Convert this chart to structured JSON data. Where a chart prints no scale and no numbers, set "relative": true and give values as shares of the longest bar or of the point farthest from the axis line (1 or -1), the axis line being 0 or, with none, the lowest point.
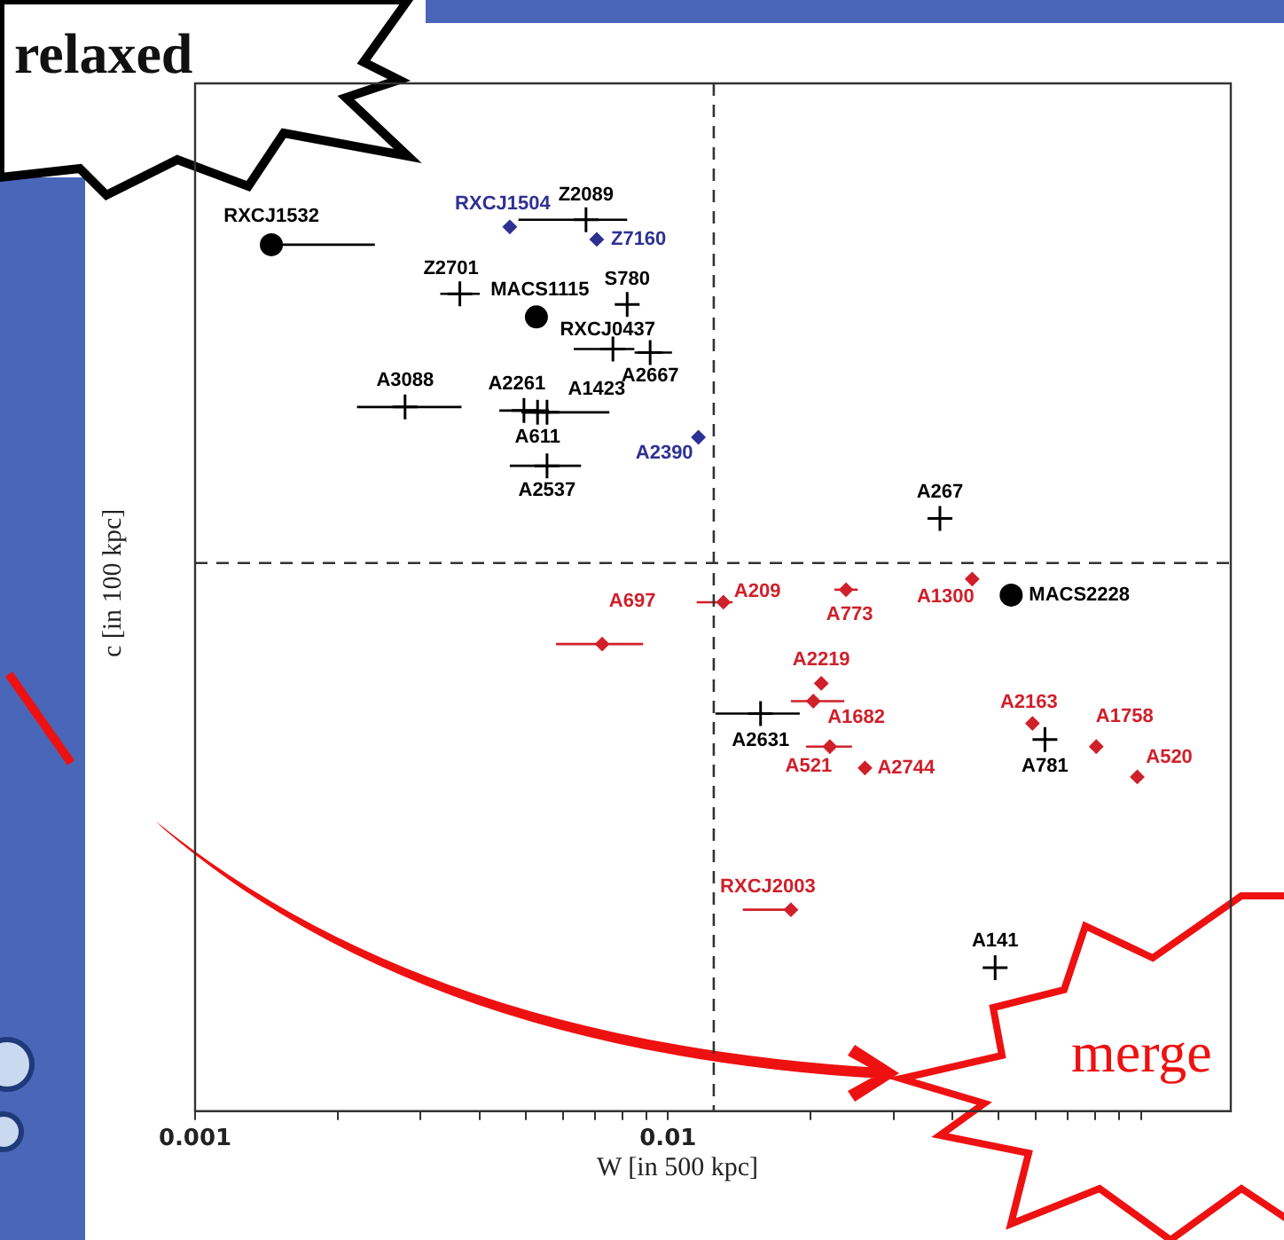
{
  "chart_data": {
    "type": "scatter",
    "xlabel": "W [in 500 kpc]",
    "ylabel": "c [in 100 kpc]",
    "relative": true,
    "log": "x",
    "grid": false,
    "legend": false,
    "xlim": [
      0.001,
      0.155
    ],
    "xticks": [
      0.001,
      {
        "value": 0.002,
        "label": null
      },
      {
        "value": 0.003,
        "label": null
      },
      {
        "value": 0.004,
        "label": null
      },
      {
        "value": 0.005,
        "label": null
      },
      {
        "value": 0.006,
        "label": null
      },
      {
        "value": 0.007,
        "label": null
      },
      {
        "value": 0.008,
        "label": null
      },
      {
        "value": 0.009,
        "label": null
      },
      0.01,
      {
        "value": 0.02,
        "label": null
      },
      {
        "value": 0.03,
        "label": null
      },
      {
        "value": 0.04,
        "label": null
      },
      {
        "value": 0.05,
        "label": null
      },
      {
        "value": 0.06,
        "label": null
      },
      {
        "value": 0.07,
        "label": null
      },
      {
        "value": 0.08,
        "label": null
      },
      {
        "value": 0.09,
        "label": null
      },
      {
        "value": 0.1,
        "label": null
      }
    ],
    "ref_lines": [
      {
        "axis": "x",
        "value": 0.0125,
        "line_style": "dashed",
        "color": "#333333"
      },
      {
        "axis": "y",
        "value": 0.615,
        "line_style": "dashed",
        "color": "#333333"
      }
    ],
    "series": [
      {
        "color": "#000000",
        "marker": "circle",
        "x": [
          0.00145,
          0.00527,
          0.0532
        ],
        "values": [
          0.972,
          0.891,
          0.579
        ],
        "xerrors": [
          [
            0.00145,
            0.0024
          ],
          null,
          null
        ]
      },
      {
        "color": "#000000",
        "marker": "cross",
        "x": [
          0.00671,
          0.00363,
          0.0082,
          0.00765,
          0.00917,
          0.00278,
          0.00496,
          0.0053,
          0.00555,
          0.00555,
          0.0376,
          0.0157,
          0.0627,
          0.0492
        ],
        "values": [
          1.0,
          0.917,
          0.905,
          0.855,
          0.851,
          0.79,
          0.786,
          0.784,
          0.784,
          0.724,
          0.665,
          0.446,
          0.417,
          0.161
        ],
        "xerrors": [
          [
            0.00483,
            0.0082
          ],
          [
            0.0033,
            0.004
          ],
          null,
          [
            0.00632,
            0.00849
          ],
          [
            0.0085,
            0.0102
          ],
          [
            0.0022,
            0.00366
          ],
          [
            0.0044,
            0.0056
          ],
          null,
          [
            0.0049,
            0.00752
          ],
          [
            0.00463,
            0.00655
          ],
          null,
          [
            0.0126,
            0.019
          ],
          null,
          null
        ]
      },
      {
        "color": "#2e3192",
        "marker": "diamond",
        "x": [
          0.00463,
          0.00707,
          0.0116
        ],
        "values": [
          0.992,
          0.978,
          0.756
        ]
      },
      {
        "color": "#d0202a",
        "marker": "diamond",
        "x": [
          0.00726,
          0.0131,
          0.0238,
          0.044,
          0.0211,
          0.0203,
          0.022,
          0.0261,
          0.059,
          0.0805,
          0.0983,
          0.0182
        ],
        "values": [
          0.524,
          0.571,
          0.585,
          0.597,
          0.48,
          0.46,
          0.409,
          0.385,
          0.435,
          0.409,
          0.375,
          0.226
        ],
        "xerrors": [
          [
            0.0058,
            0.00886
          ],
          [
            0.0115,
            0.0137
          ],
          [
            0.0225,
            0.0252
          ],
          null,
          null,
          [
            0.0182,
            0.0236
          ],
          [
            0.0196,
            0.0245
          ],
          null,
          null,
          null,
          null,
          [
            0.0144,
            0.0186
          ]
        ]
      }
    ],
    "annotations": [
      {
        "text": "RXCJ1532",
        "x": 0.00145,
        "y": 0.972
      },
      {
        "text": "MACS1115",
        "x": 0.00527,
        "y": 0.891
      },
      {
        "text": "MACS2228",
        "x": 0.0532,
        "y": 0.579
      },
      {
        "text": "Z2089",
        "x": 0.00671,
        "y": 1.0
      },
      {
        "text": "Z2701",
        "x": 0.00363,
        "y": 0.917
      },
      {
        "text": "S780",
        "x": 0.0082,
        "y": 0.905
      },
      {
        "text": "RXCJ0437",
        "x": 0.00765,
        "y": 0.855
      },
      {
        "text": "A2667",
        "x": 0.00917,
        "y": 0.851
      },
      {
        "text": "A3088",
        "x": 0.00278,
        "y": 0.79
      },
      {
        "text": "A2261",
        "x": 0.00496,
        "y": 0.786
      },
      {
        "text": "A611",
        "x": 0.0053,
        "y": 0.784
      },
      {
        "text": "A1423",
        "x": 0.00555,
        "y": 0.784
      },
      {
        "text": "A2537",
        "x": 0.00555,
        "y": 0.724
      },
      {
        "text": "A267",
        "x": 0.0376,
        "y": 0.665
      },
      {
        "text": "A2631",
        "x": 0.0157,
        "y": 0.446
      },
      {
        "text": "A781",
        "x": 0.0627,
        "y": 0.417
      },
      {
        "text": "A141",
        "x": 0.0492,
        "y": 0.161
      },
      {
        "text": "RXCJ1504",
        "x": 0.00463,
        "y": 0.992
      },
      {
        "text": "Z7160",
        "x": 0.00707,
        "y": 0.978
      },
      {
        "text": "A2390",
        "x": 0.0116,
        "y": 0.756
      },
      {
        "text": "A697",
        "x": 0.00726,
        "y": 0.524
      },
      {
        "text": "A209",
        "x": 0.0131,
        "y": 0.571
      },
      {
        "text": "A773",
        "x": 0.0238,
        "y": 0.585
      },
      {
        "text": "A1300",
        "x": 0.044,
        "y": 0.597
      },
      {
        "text": "A2219",
        "x": 0.0211,
        "y": 0.48
      },
      {
        "text": "A1682",
        "x": 0.0203,
        "y": 0.46
      },
      {
        "text": "A521",
        "x": 0.022,
        "y": 0.409
      },
      {
        "text": "A2744",
        "x": 0.0261,
        "y": 0.385
      },
      {
        "text": "A2163",
        "x": 0.059,
        "y": 0.435
      },
      {
        "text": "A1758",
        "x": 0.0805,
        "y": 0.409
      },
      {
        "text": "A520",
        "x": 0.0983,
        "y": 0.375
      },
      {
        "text": "RXCJ2003",
        "x": 0.0182,
        "y": 0.226
      },
      "relaxed",
      "merge"
    ]
  }
}
